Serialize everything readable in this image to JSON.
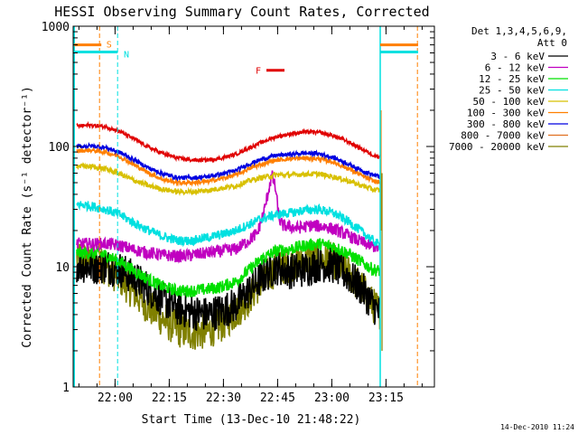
{
  "chart_data": {
    "type": "line",
    "title": "HESSI Observing Summary Count Rates, Corrected",
    "xlabel": "Start Time (13-Dec-10 21:48:22)",
    "ylabel": "Corrected Count Rate (s⁻¹ detector⁻¹)",
    "ylog": true,
    "ylim": [
      1,
      1000
    ],
    "x_unit": "minutes after 21:48:22",
    "x_ticks": [
      {
        "t": 11.6,
        "label": "22:00"
      },
      {
        "t": 26.6,
        "label": "22:15"
      },
      {
        "t": 41.6,
        "label": "22:30"
      },
      {
        "t": 56.6,
        "label": "22:45"
      },
      {
        "t": 71.6,
        "label": "23:00"
      },
      {
        "t": 86.6,
        "label": "23:15"
      }
    ],
    "y_ticks": [
      {
        "v": 1,
        "label": "1"
      },
      {
        "v": 10,
        "label": "10"
      },
      {
        "v": 100,
        "label": "100"
      },
      {
        "v": 1000,
        "label": "1000"
      }
    ],
    "legend_header": [
      "Det 1,3,4,5,6,9,",
      "Att 0"
    ],
    "series": [
      {
        "name": "3 - 6 keV",
        "color": "#000000",
        "noise": 0.35,
        "points": [
          [
            1,
            10.5
          ],
          [
            5,
            10
          ],
          [
            9,
            10.2
          ],
          [
            13,
            9.5
          ],
          [
            17,
            8
          ],
          [
            21,
            6.5
          ],
          [
            25,
            5.3
          ],
          [
            29,
            4.5
          ],
          [
            33,
            4.2
          ],
          [
            37,
            4
          ],
          [
            41,
            4.3
          ],
          [
            45,
            4.8
          ],
          [
            48,
            6
          ],
          [
            52,
            8
          ],
          [
            56,
            10
          ],
          [
            60,
            9.2
          ],
          [
            64,
            9.5
          ],
          [
            68,
            10.5
          ],
          [
            72,
            10.2
          ],
          [
            76,
            8.5
          ],
          [
            80,
            6.5
          ],
          [
            83,
            4.8
          ],
          [
            85,
            4
          ]
        ]
      },
      {
        "name": "6 - 12 keV",
        "color": "#c000c0",
        "noise": 0.12,
        "points": [
          [
            1,
            15.5
          ],
          [
            5,
            15.5
          ],
          [
            9,
            15.5
          ],
          [
            13,
            15
          ],
          [
            17,
            13.8
          ],
          [
            21,
            13
          ],
          [
            25,
            12.5
          ],
          [
            29,
            12.2
          ],
          [
            33,
            12.5
          ],
          [
            37,
            13
          ],
          [
            41,
            13.5
          ],
          [
            45,
            14
          ],
          [
            48,
            16
          ],
          [
            51,
            19
          ],
          [
            53,
            30
          ],
          [
            55,
            58
          ],
          [
            56,
            45
          ],
          [
            57,
            25
          ],
          [
            58,
            22
          ],
          [
            62,
            21
          ],
          [
            66,
            22
          ],
          [
            70,
            21.5
          ],
          [
            74,
            19.5
          ],
          [
            78,
            17
          ],
          [
            81,
            15.5
          ],
          [
            84,
            14.5
          ],
          [
            85,
            14
          ]
        ]
      },
      {
        "name": "12 - 25 keV",
        "color": "#00e000",
        "noise": 0.12,
        "points": [
          [
            1,
            13
          ],
          [
            5,
            13
          ],
          [
            9,
            12.5
          ],
          [
            13,
            11
          ],
          [
            17,
            9.2
          ],
          [
            21,
            7.8
          ],
          [
            25,
            6.8
          ],
          [
            29,
            6.3
          ],
          [
            33,
            6.3
          ],
          [
            37,
            6.5
          ],
          [
            41,
            6.8
          ],
          [
            45,
            7.5
          ],
          [
            48,
            9
          ],
          [
            52,
            11.5
          ],
          [
            56,
            13.5
          ],
          [
            60,
            14
          ],
          [
            64,
            15
          ],
          [
            68,
            15.5
          ],
          [
            72,
            14.8
          ],
          [
            76,
            13
          ],
          [
            80,
            10.8
          ],
          [
            83,
            9.5
          ],
          [
            85,
            9.2
          ]
        ]
      },
      {
        "name": "25 - 50 keV",
        "color": "#00e0e0",
        "noise": 0.09,
        "points": [
          [
            1,
            33
          ],
          [
            5,
            32
          ],
          [
            9,
            30
          ],
          [
            13,
            27
          ],
          [
            17,
            23
          ],
          [
            21,
            20
          ],
          [
            25,
            17.8
          ],
          [
            29,
            16.5
          ],
          [
            33,
            16.5
          ],
          [
            37,
            17.5
          ],
          [
            41,
            18.5
          ],
          [
            45,
            20
          ],
          [
            48,
            22
          ],
          [
            52,
            25
          ],
          [
            56,
            27
          ],
          [
            60,
            28
          ],
          [
            64,
            29.5
          ],
          [
            68,
            30
          ],
          [
            72,
            28
          ],
          [
            76,
            24
          ],
          [
            80,
            19.5
          ],
          [
            83,
            16.5
          ],
          [
            85,
            15
          ]
        ]
      },
      {
        "name": "50 - 100 keV",
        "color": "#d8c000",
        "noise": 0.05,
        "points": [
          [
            1,
            69
          ],
          [
            5,
            68
          ],
          [
            9,
            65
          ],
          [
            13,
            59
          ],
          [
            17,
            52
          ],
          [
            21,
            47
          ],
          [
            25,
            44
          ],
          [
            29,
            42
          ],
          [
            33,
            42
          ],
          [
            37,
            43
          ],
          [
            41,
            45
          ],
          [
            45,
            47
          ],
          [
            48,
            51
          ],
          [
            52,
            55
          ],
          [
            56,
            58
          ],
          [
            60,
            58
          ],
          [
            64,
            59
          ],
          [
            68,
            59
          ],
          [
            72,
            56
          ],
          [
            76,
            52
          ],
          [
            80,
            47
          ],
          [
            83,
            44
          ],
          [
            85,
            43
          ]
        ]
      },
      {
        "name": "100 - 300 keV",
        "color": "#ff7f00",
        "noise": 0.04,
        "points": [
          [
            1,
            92
          ],
          [
            5,
            93
          ],
          [
            9,
            90
          ],
          [
            13,
            82
          ],
          [
            17,
            70
          ],
          [
            21,
            60
          ],
          [
            25,
            53
          ],
          [
            29,
            50
          ],
          [
            33,
            50
          ],
          [
            37,
            51
          ],
          [
            41,
            54
          ],
          [
            45,
            58
          ],
          [
            48,
            64
          ],
          [
            52,
            71
          ],
          [
            56,
            77
          ],
          [
            60,
            79
          ],
          [
            64,
            80
          ],
          [
            68,
            79
          ],
          [
            72,
            74
          ],
          [
            76,
            66
          ],
          [
            80,
            57
          ],
          [
            83,
            52
          ],
          [
            85,
            50
          ]
        ]
      },
      {
        "name": "300 - 800 keV",
        "color": "#0000e0",
        "noise": 0.04,
        "points": [
          [
            1,
            100
          ],
          [
            5,
            101
          ],
          [
            9,
            98
          ],
          [
            13,
            89
          ],
          [
            17,
            77
          ],
          [
            21,
            66
          ],
          [
            25,
            59
          ],
          [
            29,
            55
          ],
          [
            33,
            55
          ],
          [
            37,
            56
          ],
          [
            41,
            59
          ],
          [
            45,
            63
          ],
          [
            48,
            70
          ],
          [
            52,
            78
          ],
          [
            56,
            84
          ],
          [
            60,
            86
          ],
          [
            64,
            88
          ],
          [
            68,
            87
          ],
          [
            72,
            81
          ],
          [
            76,
            72
          ],
          [
            80,
            63
          ],
          [
            83,
            58
          ],
          [
            85,
            56
          ]
        ]
      },
      {
        "name": "800 - 7000 keV",
        "color": "#e07020",
        "noise": 0,
        "points": []
      },
      {
        "name": "7000 - 20000 keV",
        "color": "#808000",
        "noise": 0.35,
        "points": [
          [
            1,
            12
          ],
          [
            5,
            11
          ],
          [
            9,
            10
          ],
          [
            13,
            8
          ],
          [
            17,
            6
          ],
          [
            21,
            4.6
          ],
          [
            25,
            3.6
          ],
          [
            29,
            3
          ],
          [
            33,
            2.8
          ],
          [
            37,
            2.9
          ],
          [
            41,
            3.3
          ],
          [
            45,
            4.2
          ],
          [
            48,
            5.2
          ],
          [
            52,
            7.5
          ],
          [
            56,
            9.5
          ],
          [
            60,
            10.5
          ],
          [
            64,
            11.3
          ],
          [
            68,
            11.8
          ],
          [
            72,
            11.3
          ],
          [
            76,
            9
          ],
          [
            80,
            6.6
          ],
          [
            83,
            4.8
          ],
          [
            85,
            4.2
          ]
        ]
      }
    ],
    "red_top_series": {
      "color": "#e00000",
      "noise": 0.035,
      "points": [
        [
          1,
          148
        ],
        [
          5,
          150
        ],
        [
          9,
          146
        ],
        [
          13,
          133
        ],
        [
          17,
          115
        ],
        [
          21,
          98
        ],
        [
          25,
          87
        ],
        [
          29,
          80
        ],
        [
          33,
          77
        ],
        [
          37,
          77
        ],
        [
          41,
          80
        ],
        [
          45,
          86
        ],
        [
          48,
          95
        ],
        [
          52,
          108
        ],
        [
          56,
          120
        ],
        [
          60,
          127
        ],
        [
          64,
          132
        ],
        [
          68,
          131
        ],
        [
          72,
          123
        ],
        [
          76,
          110
        ],
        [
          80,
          95
        ],
        [
          83,
          85
        ],
        [
          85,
          82
        ]
      ]
    },
    "markers": [
      {
        "label": "S",
        "color": "#ff7f00"
      },
      {
        "label": "N",
        "color": "#00e0e0"
      },
      {
        "label": "F",
        "color": "#e00000"
      }
    ]
  },
  "timestamp": "14-Dec-2010 11:24"
}
